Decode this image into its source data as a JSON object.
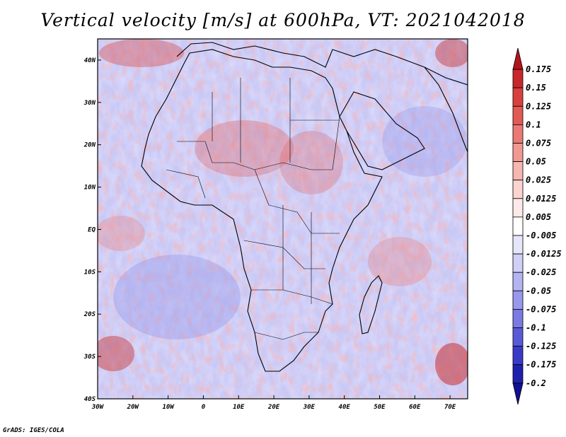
{
  "title": "Vertical velocity [m/s] at 600hPa, VT: 2021042018",
  "footer": "GrADS: IGES/COLA",
  "map": {
    "projection": "lat-lon",
    "lon_range": [
      -30,
      75
    ],
    "lat_range": [
      -40,
      45
    ],
    "lon_ticks": [
      "30W",
      "20W",
      "10W",
      "0",
      "10E",
      "20E",
      "30E",
      "40E",
      "50E",
      "60E",
      "70E"
    ],
    "lat_ticks": [
      "40N",
      "30N",
      "20N",
      "10N",
      "EQ",
      "10S",
      "20S",
      "30S",
      "40S"
    ]
  },
  "colorbar": {
    "labels": [
      "0.175",
      "0.15",
      "0.125",
      "0.1",
      "0.075",
      "0.05",
      "0.025",
      "0.0125",
      "0.005",
      "-0.005",
      "-0.0125",
      "-0.025",
      "-0.05",
      "-0.075",
      "-0.1",
      "-0.125",
      "-0.175",
      "-0.2"
    ],
    "colors": [
      "#b4141c",
      "#c8282d",
      "#d9413e",
      "#e25a55",
      "#eb7a75",
      "#f29892",
      "#f7b6b0",
      "#fbd3cf",
      "#fdeae8",
      "#ffffff",
      "#e6e6fb",
      "#cfcff7",
      "#b4b4f2",
      "#9898ec",
      "#7a7ae4",
      "#5a5ad8",
      "#3a3ac8",
      "#2020b0",
      "#101090"
    ]
  }
}
